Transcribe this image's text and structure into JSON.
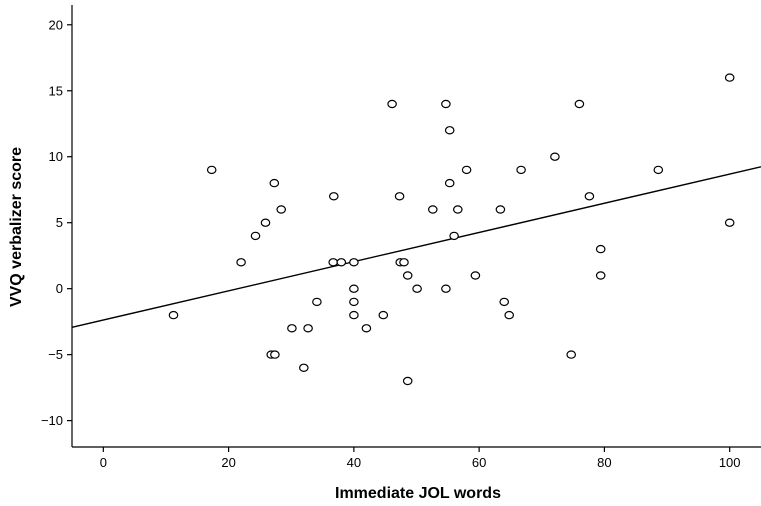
{
  "chart_data": {
    "type": "scatter",
    "title": "",
    "xlabel": "Immediate JOL words",
    "ylabel": "VVQ verbalizer score",
    "xlim": [
      -5,
      105
    ],
    "ylim": [
      -12,
      21.5
    ],
    "xticks": [
      0,
      20,
      40,
      60,
      80,
      100
    ],
    "yticks": [
      -10,
      -5,
      0,
      5,
      10,
      15,
      20
    ],
    "grid": false,
    "legend": "none",
    "points": [
      {
        "x": 11.2,
        "y": -2
      },
      {
        "x": 17.3,
        "y": 9
      },
      {
        "x": 22.0,
        "y": 2
      },
      {
        "x": 24.3,
        "y": 4
      },
      {
        "x": 25.9,
        "y": 5
      },
      {
        "x": 26.8,
        "y": -5
      },
      {
        "x": 27.4,
        "y": -5
      },
      {
        "x": 27.3,
        "y": 8
      },
      {
        "x": 28.4,
        "y": 6
      },
      {
        "x": 30.1,
        "y": -3
      },
      {
        "x": 32.0,
        "y": -6
      },
      {
        "x": 32.7,
        "y": -3
      },
      {
        "x": 34.1,
        "y": -1
      },
      {
        "x": 36.7,
        "y": 2
      },
      {
        "x": 36.8,
        "y": 7
      },
      {
        "x": 38.0,
        "y": 2
      },
      {
        "x": 40.0,
        "y": 2
      },
      {
        "x": 40.0,
        "y": 0
      },
      {
        "x": 40.0,
        "y": -1
      },
      {
        "x": 40.0,
        "y": -2
      },
      {
        "x": 42.0,
        "y": -3
      },
      {
        "x": 44.7,
        "y": -2
      },
      {
        "x": 46.1,
        "y": 14
      },
      {
        "x": 47.3,
        "y": 7
      },
      {
        "x": 47.4,
        "y": 2
      },
      {
        "x": 48.0,
        "y": 2
      },
      {
        "x": 48.6,
        "y": 1
      },
      {
        "x": 48.6,
        "y": -7
      },
      {
        "x": 50.1,
        "y": 0
      },
      {
        "x": 52.6,
        "y": 6
      },
      {
        "x": 54.7,
        "y": 14
      },
      {
        "x": 54.7,
        "y": 0
      },
      {
        "x": 55.3,
        "y": 12
      },
      {
        "x": 55.3,
        "y": 8
      },
      {
        "x": 56.0,
        "y": 4
      },
      {
        "x": 56.6,
        "y": 6
      },
      {
        "x": 58.0,
        "y": 9
      },
      {
        "x": 59.4,
        "y": 1
      },
      {
        "x": 63.4,
        "y": 6
      },
      {
        "x": 64.0,
        "y": -1
      },
      {
        "x": 64.8,
        "y": -2
      },
      {
        "x": 66.7,
        "y": 9
      },
      {
        "x": 72.1,
        "y": 10
      },
      {
        "x": 74.7,
        "y": -5
      },
      {
        "x": 76.0,
        "y": 14
      },
      {
        "x": 77.6,
        "y": 7
      },
      {
        "x": 79.4,
        "y": 3
      },
      {
        "x": 79.4,
        "y": 1
      },
      {
        "x": 88.6,
        "y": 9
      },
      {
        "x": 100.0,
        "y": 16
      },
      {
        "x": 100.0,
        "y": 5
      }
    ],
    "fit_line": {
      "x": [
        -5,
        105
      ],
      "y": [
        -2.93,
        9.24
      ]
    }
  }
}
